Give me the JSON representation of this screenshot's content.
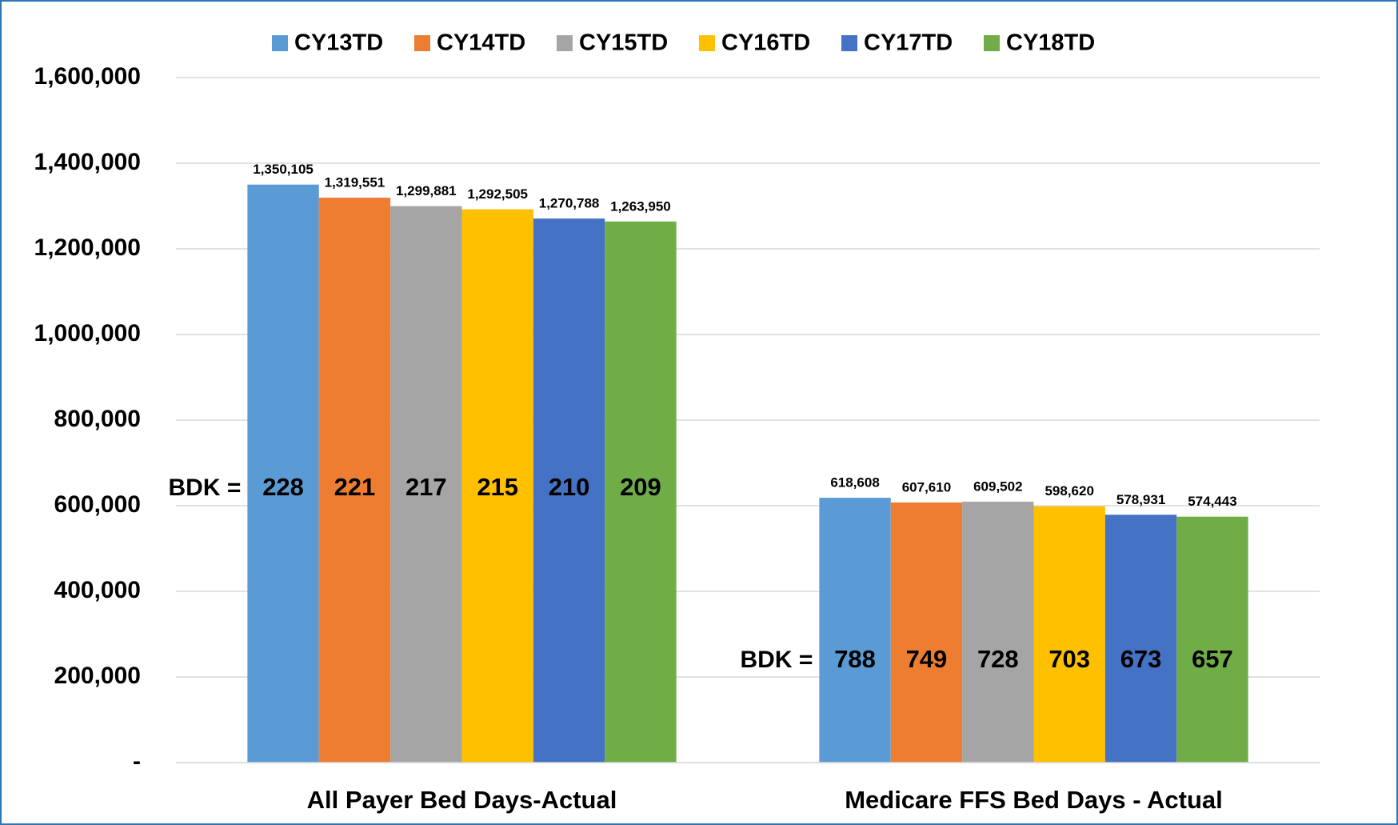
{
  "chart_data": {
    "type": "bar",
    "categories": [
      "All Payer Bed Days-Actual",
      "Medicare FFS Bed Days - Actual"
    ],
    "series": [
      {
        "name": "CY13TD",
        "color": "#5b9bd5",
        "values": [
          1350105,
          618608
        ],
        "value_labels": [
          "1,350,105",
          "618,608"
        ],
        "bdk": [
          228,
          788
        ]
      },
      {
        "name": "CY14TD",
        "color": "#ed7d31",
        "values": [
          1319551,
          607610
        ],
        "value_labels": [
          "1,319,551",
          "607,610"
        ],
        "bdk": [
          221,
          749
        ]
      },
      {
        "name": "CY15TD",
        "color": "#a5a5a5",
        "values": [
          1299881,
          609502
        ],
        "value_labels": [
          "1,299,881",
          "609,502"
        ],
        "bdk": [
          217,
          728
        ]
      },
      {
        "name": "CY16TD",
        "color": "#ffc000",
        "values": [
          1292505,
          598620
        ],
        "value_labels": [
          "1,292,505",
          "598,620"
        ],
        "bdk": [
          215,
          703
        ]
      },
      {
        "name": "CY17TD",
        "color": "#4472c4",
        "values": [
          1270788,
          578931
        ],
        "value_labels": [
          "1,270,788",
          "578,931"
        ],
        "bdk": [
          210,
          673
        ]
      },
      {
        "name": "CY18TD",
        "color": "#70ad47",
        "values": [
          1263950,
          574443
        ],
        "value_labels": [
          "1,263,950",
          "574,443"
        ],
        "bdk": [
          209,
          657
        ]
      }
    ],
    "bdk_label": "BDK =",
    "ylim": [
      0,
      1600000
    ],
    "yticks": [
      {
        "value": 0,
        "label": "-"
      },
      {
        "value": 200000,
        "label": "200,000"
      },
      {
        "value": 400000,
        "label": "400,000"
      },
      {
        "value": 600000,
        "label": "600,000"
      },
      {
        "value": 800000,
        "label": "800,000"
      },
      {
        "value": 1000000,
        "label": "1,000,000"
      },
      {
        "value": 1200000,
        "label": "1,200,000"
      },
      {
        "value": 1400000,
        "label": "1,400,000"
      },
      {
        "value": 1600000,
        "label": "1,600,000"
      }
    ],
    "grid": true,
    "legend": "top"
  }
}
